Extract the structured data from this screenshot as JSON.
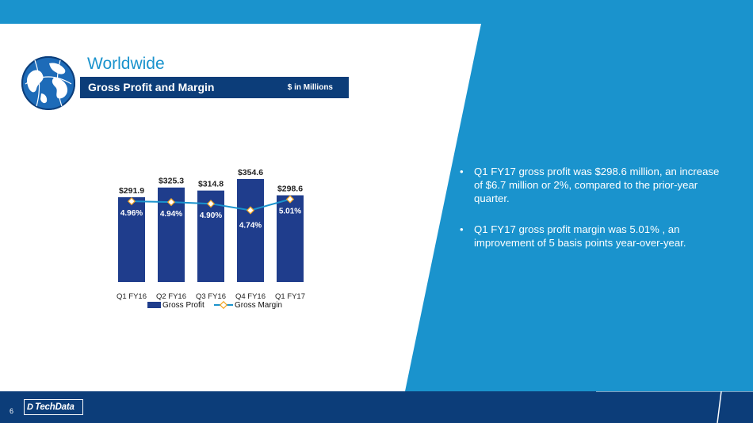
{
  "slide": {
    "title": "Worldwide",
    "subheader": "Gross Profit and Margin",
    "unit_note": "$ in Millions",
    "page_number": "6",
    "logo_mark": "D",
    "logo_text": "TechData",
    "icons": {
      "globe": "globe-icon",
      "logo": "techdata-logo"
    },
    "colors": {
      "accent": "#1a93cd",
      "navy": "#0c3d79",
      "bar": "#1f3d8c",
      "line": "#1a93cd",
      "marker": "#f5a623"
    }
  },
  "bullets": [
    "Q1 FY17 gross profit was $298.6 million, an increase of $6.7 million or 2%, compared to the prior-year quarter.",
    "Q1 FY17 gross profit margin was 5.01% , an improvement of  5 basis points year-over-year."
  ],
  "bullet_symbol": "•",
  "chart_data": {
    "type": "bar",
    "categories": [
      "Q1 FY16",
      "Q2 FY16",
      "Q3 FY16",
      "Q4 FY16",
      "Q1 FY17"
    ],
    "series": [
      {
        "name": "Gross Profit",
        "type": "bar",
        "values": [
          291.9,
          325.3,
          314.8,
          354.6,
          298.6
        ],
        "labels": [
          "$291.9",
          "$325.3",
          "$314.8",
          "$354.6",
          "$298.6"
        ]
      },
      {
        "name": "Gross Margin",
        "type": "line",
        "values": [
          4.96,
          4.94,
          4.9,
          4.74,
          5.01
        ],
        "labels": [
          "4.96%",
          "4.94%",
          "4.90%",
          "4.74%",
          "5.01%"
        ]
      }
    ],
    "ylim": [
      0,
      400
    ],
    "y2lim": [
      3.0,
      6.0
    ],
    "legend": "bottom",
    "grid": false
  }
}
